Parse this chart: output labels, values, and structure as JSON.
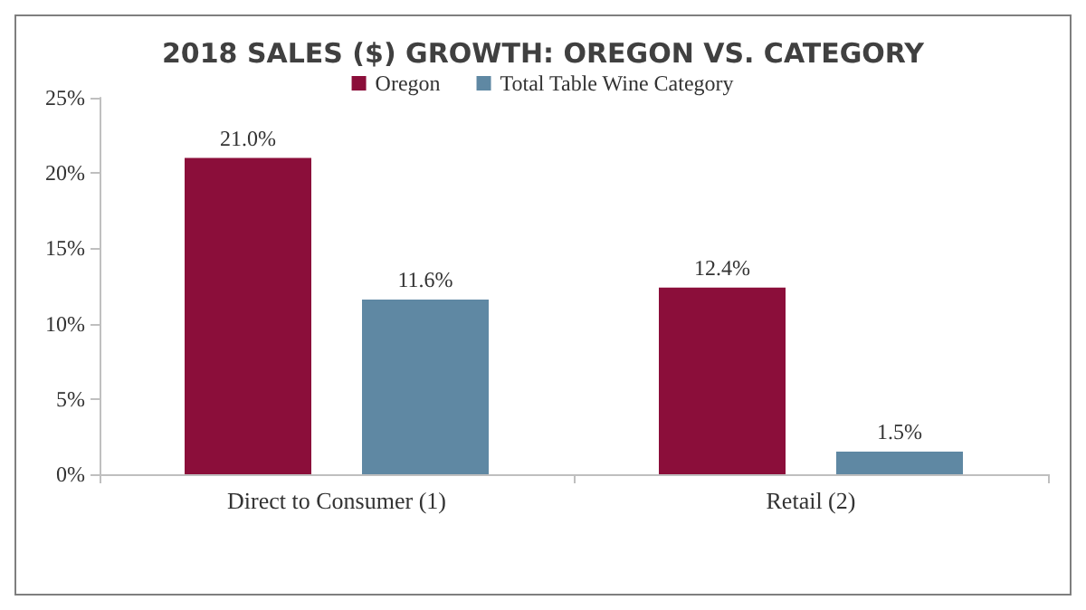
{
  "chart_data": {
    "type": "bar",
    "title": "2018 SALES ($) GROWTH: OREGON VS. CATEGORY",
    "categories": [
      "Direct to Consumer (1)",
      "Retail (2)"
    ],
    "series": [
      {
        "name": "Oregon",
        "color": "#8b0e3a",
        "values": [
          21.0,
          12.4
        ],
        "value_labels": [
          "21.0%",
          "12.4%"
        ]
      },
      {
        "name": "Total Table Wine Category",
        "color": "#5f88a3",
        "values": [
          11.6,
          1.5
        ],
        "value_labels": [
          "11.6%",
          "1.5%"
        ]
      }
    ],
    "ylim": [
      0,
      25
    ],
    "yticks": [
      {
        "value": 0,
        "label": "0%"
      },
      {
        "value": 5,
        "label": "5%"
      },
      {
        "value": 10,
        "label": "10%"
      },
      {
        "value": 15,
        "label": "15%"
      },
      {
        "value": 20,
        "label": "20%"
      },
      {
        "value": 25,
        "label": "25%"
      }
    ],
    "grid": false,
    "legend": "top"
  }
}
